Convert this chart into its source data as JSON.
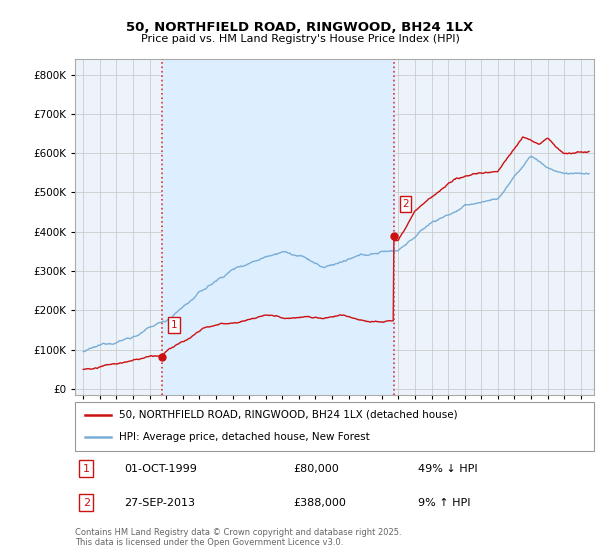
{
  "title": "50, NORTHFIELD ROAD, RINGWOOD, BH24 1LX",
  "subtitle": "Price paid vs. HM Land Registry's House Price Index (HPI)",
  "yticks": [
    0,
    100000,
    200000,
    300000,
    400000,
    500000,
    600000,
    700000,
    800000
  ],
  "ytick_labels": [
    "£0",
    "£100K",
    "£200K",
    "£300K",
    "£400K",
    "£500K",
    "£600K",
    "£700K",
    "£800K"
  ],
  "ylim": [
    -15000,
    840000
  ],
  "xlim": [
    1994.5,
    2025.8
  ],
  "sale1_x": 1999.75,
  "sale1_y": 80000,
  "sale2_x": 2013.73,
  "sale2_y": 388000,
  "vline_color": "#dd3333",
  "vline_style": ":",
  "red_line_color": "#cc1111",
  "blue_line_color": "#7aaed6",
  "shade_color": "#ddeeff",
  "grid_color": "#cccccc",
  "bg_color": "#f0f4fa",
  "plot_bg": "#edf3fa",
  "legend1_label": "50, NORTHFIELD ROAD, RINGWOOD, BH24 1LX (detached house)",
  "legend2_label": "HPI: Average price, detached house, New Forest",
  "footer1": "Contains HM Land Registry data © Crown copyright and database right 2025.",
  "footer2": "This data is licensed under the Open Government Licence v3.0.",
  "note1_label": "1",
  "note1_date": "01-OCT-1999",
  "note1_price": "£80,000",
  "note1_pct": "49% ↓ HPI",
  "note2_label": "2",
  "note2_date": "27-SEP-2013",
  "note2_price": "£388,000",
  "note2_pct": "9% ↑ HPI"
}
